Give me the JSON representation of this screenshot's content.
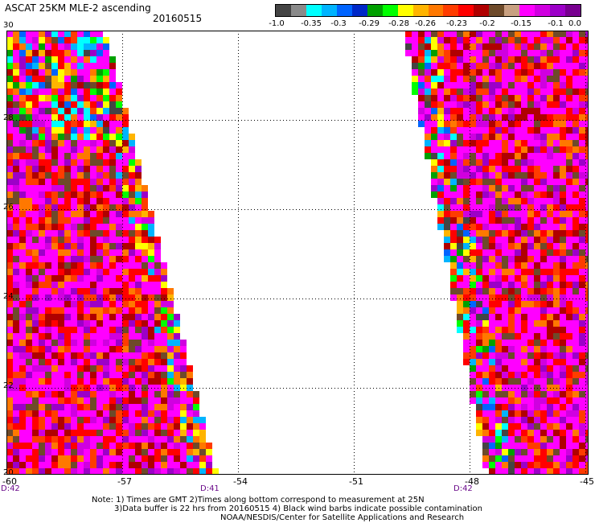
{
  "title": "ASCAT 25KM MLE-2 ascending",
  "date": "20160515",
  "colorbar": {
    "colors": [
      "#444444",
      "#8a8a8a",
      "#00ffff",
      "#00b4ff",
      "#0064ff",
      "#0028c8",
      "#00a000",
      "#00ff00",
      "#ffff00",
      "#ffb400",
      "#ff7800",
      "#ff3c00",
      "#ff0000",
      "#b00000",
      "#6e4a2a",
      "#c8a080",
      "#ff00ff",
      "#d000e0",
      "#9c00c8",
      "#780090"
    ],
    "labels": [
      "-1.0",
      "-0.35",
      "-0.3",
      "-0.29",
      "-0.28",
      "-0.26",
      "-0.23",
      "-0.2",
      "-0.15",
      "-0.1",
      "0.0"
    ]
  },
  "map": {
    "lat_range": [
      20,
      30
    ],
    "lon_range": [
      -60,
      -45
    ],
    "lat_labels": [
      "30",
      "28",
      "26",
      "24",
      "22",
      "20"
    ],
    "lon_labels": [
      "-60",
      "-57",
      "-54",
      "-51",
      "-48",
      "-45"
    ],
    "time_labels": [
      "D:42",
      "D:41",
      "D:42"
    ]
  },
  "notes": [
    "Note: 1) Times are GMT 2)Times along bottom correspond to measurement at 25N",
    "3)Data buffer is 22 hrs from 20160515 4) Black wind barbs indicate possible contamination",
    "NOAA/NESDIS/Center for Satellite Applications and Research"
  ]
}
